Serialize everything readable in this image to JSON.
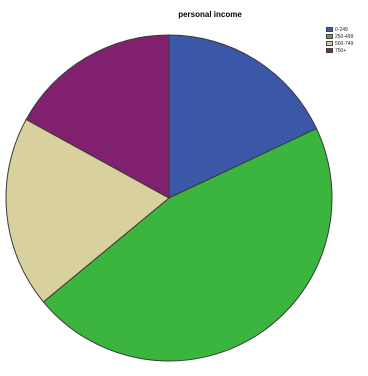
{
  "chart_data": {
    "type": "pie",
    "title": "personal income",
    "categories": [
      "0-249",
      "250-499",
      "500-749",
      "750+"
    ],
    "values": [
      18,
      46,
      19,
      17
    ],
    "colors": [
      "#3b58a8",
      "#3cb53f",
      "#d8d19d",
      "#80206f"
    ],
    "legend_position": "top-right",
    "start_angle_deg": 0,
    "direction": "clockwise"
  }
}
